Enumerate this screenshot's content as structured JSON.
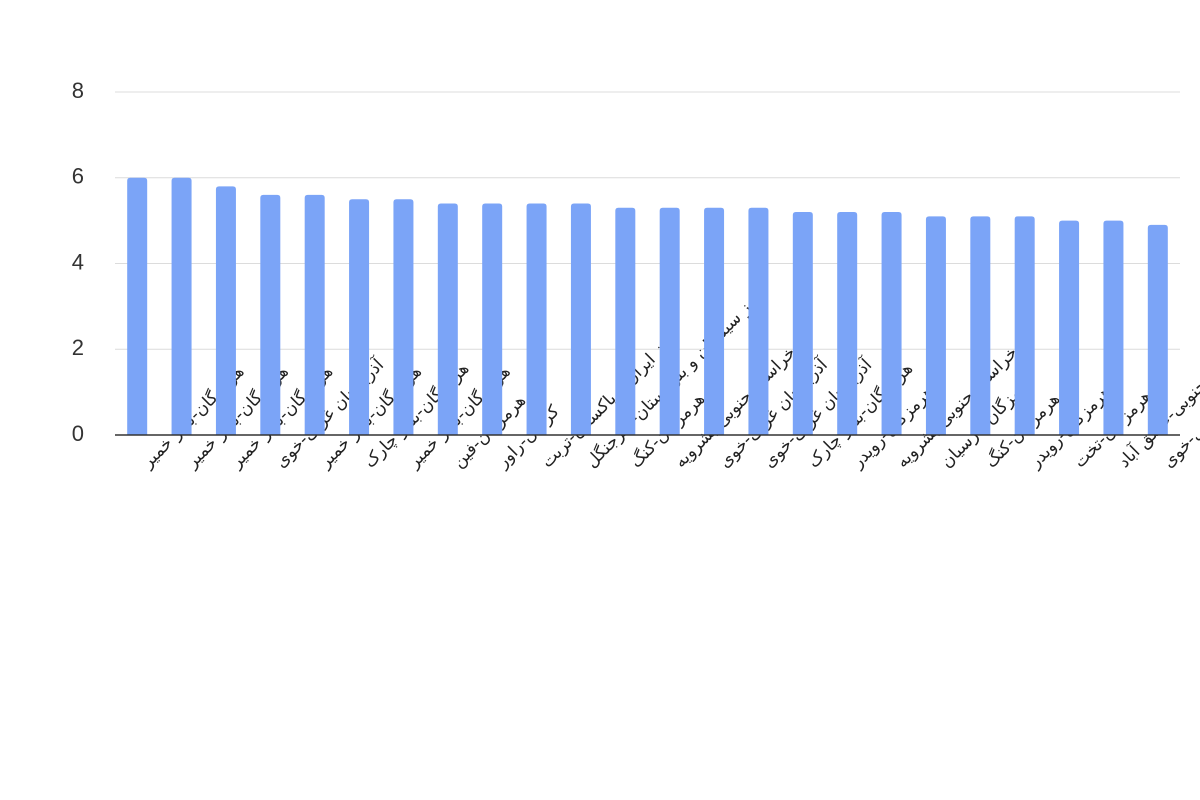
{
  "chart_data": {
    "type": "bar",
    "categories": [
      "هرمزگان-بندر خمیر",
      "هرمزگان-بندر خمیر",
      "هرمزگان-بندر خمیر",
      "آذربایجان غربی-خوی",
      "هرمزگان-بندر خمیر",
      "هرمزگان-بندر چارک",
      "هرمزگان-بندر خمیر",
      "هرمزگان-فین",
      "کرمان-راور",
      "مرز ایران و پاکستان-تربت",
      "مرز سیستان و بلوچستان-سرجنگل",
      "هرمزگان-کنگ",
      "خراسان جنوبی-بشرویه",
      "آذربایجان غربی-خوی",
      "آذربایجان غربی-خوی",
      "هرمزگان-بندر چارک",
      "هرمزگان-رویدر",
      "خراسان جنوبی-بشرویه",
      "هرمزگان-پارسیان",
      "هرمزگان-کنگ",
      "هرمزگان-رویدر",
      "هرمزگان-تخت",
      "خراسان جنوبی-عشق آباد",
      "آذربایجان غربی-خوی"
    ],
    "values": [
      6.0,
      6.0,
      5.8,
      5.6,
      5.6,
      5.5,
      5.5,
      5.4,
      5.4,
      5.4,
      5.4,
      5.3,
      5.3,
      5.3,
      5.3,
      5.2,
      5.2,
      5.2,
      5.1,
      5.1,
      5.1,
      5.0,
      5.0,
      4.9
    ],
    "color": "#7ba4f7",
    "ylim": [
      0,
      8
    ],
    "yticks": [
      0,
      2,
      4,
      6,
      8
    ],
    "grid": true
  }
}
